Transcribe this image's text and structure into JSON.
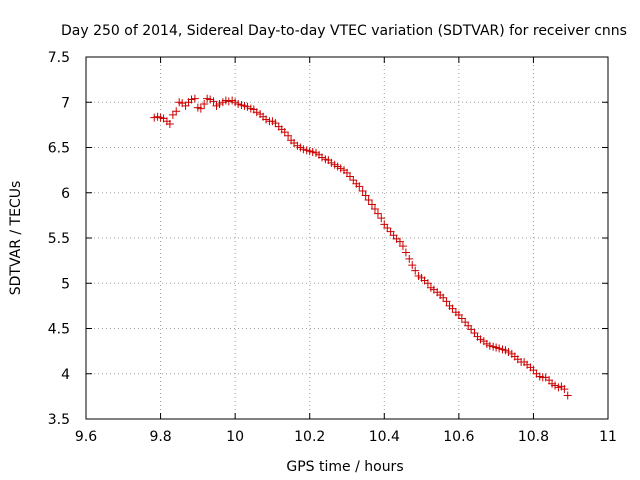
{
  "colors": {
    "series": "#cc0000",
    "grid": "#a0a0a0",
    "axis": "#000000",
    "background": "#ffffff"
  },
  "chart_data": {
    "type": "scatter",
    "title": "Day 250 of 2014, Sidereal Day-to-day VTEC variation (SDTVAR) for receiver cnns",
    "xlabel": "GPS time / hours",
    "ylabel": "SDTVAR / TECUs",
    "xlim": [
      9.6,
      11
    ],
    "ylim": [
      3.5,
      7.5
    ],
    "xticks": [
      9.6,
      9.8,
      10,
      10.2,
      10.4,
      10.6,
      10.8,
      11
    ],
    "xtick_labels": [
      "9.6",
      "9.8",
      "10",
      "10.2",
      "10.4",
      "10.6",
      "10.8",
      "11"
    ],
    "yticks": [
      3.5,
      4,
      4.5,
      5,
      5.5,
      6,
      6.5,
      7,
      7.5
    ],
    "ytick_labels": [
      "3.5",
      "4",
      "4.5",
      "5",
      "5.5",
      "6",
      "6.5",
      "7",
      "7.5"
    ],
    "grid": true,
    "marker": "+",
    "series": [
      {
        "name": "cnns",
        "x": [
          9.783,
          9.792,
          9.8,
          9.808,
          9.817,
          9.825,
          9.833,
          9.842,
          9.85,
          9.858,
          9.867,
          9.875,
          9.883,
          9.892,
          9.9,
          9.908,
          9.917,
          9.925,
          9.933,
          9.942,
          9.95,
          9.958,
          9.967,
          9.975,
          9.983,
          9.992,
          10.0,
          10.008,
          10.017,
          10.025,
          10.033,
          10.042,
          10.05,
          10.058,
          10.067,
          10.075,
          10.083,
          10.092,
          10.1,
          10.108,
          10.117,
          10.125,
          10.133,
          10.142,
          10.15,
          10.158,
          10.167,
          10.175,
          10.183,
          10.192,
          10.2,
          10.208,
          10.217,
          10.225,
          10.233,
          10.242,
          10.25,
          10.258,
          10.267,
          10.275,
          10.283,
          10.292,
          10.3,
          10.308,
          10.317,
          10.325,
          10.333,
          10.342,
          10.35,
          10.358,
          10.367,
          10.375,
          10.383,
          10.392,
          10.4,
          10.408,
          10.417,
          10.425,
          10.433,
          10.442,
          10.45,
          10.458,
          10.467,
          10.475,
          10.483,
          10.492,
          10.5,
          10.508,
          10.517,
          10.525,
          10.533,
          10.542,
          10.55,
          10.558,
          10.567,
          10.575,
          10.583,
          10.592,
          10.6,
          10.608,
          10.617,
          10.625,
          10.633,
          10.642,
          10.65,
          10.658,
          10.667,
          10.675,
          10.683,
          10.692,
          10.7,
          10.708,
          10.717,
          10.725,
          10.733,
          10.742,
          10.75,
          10.758,
          10.767,
          10.775,
          10.783,
          10.792,
          10.8,
          10.808,
          10.817,
          10.825,
          10.833,
          10.842,
          10.85,
          10.858,
          10.867,
          10.875,
          10.883,
          10.892
        ],
        "y": [
          6.83,
          6.84,
          6.83,
          6.82,
          6.79,
          6.76,
          6.86,
          6.9,
          7.0,
          6.99,
          6.96,
          7.0,
          7.03,
          7.04,
          6.94,
          6.93,
          6.98,
          7.04,
          7.03,
          7.01,
          6.96,
          6.98,
          7.0,
          7.02,
          7.01,
          7.02,
          7.0,
          6.98,
          6.97,
          6.96,
          6.95,
          6.93,
          6.92,
          6.89,
          6.87,
          6.84,
          6.81,
          6.79,
          6.79,
          6.77,
          6.73,
          6.7,
          6.67,
          6.63,
          6.58,
          6.55,
          6.52,
          6.5,
          6.48,
          6.47,
          6.46,
          6.45,
          6.44,
          6.42,
          6.39,
          6.37,
          6.36,
          6.33,
          6.31,
          6.29,
          6.27,
          6.25,
          6.22,
          6.18,
          6.14,
          6.1,
          6.07,
          6.02,
          5.97,
          5.92,
          5.87,
          5.82,
          5.77,
          5.72,
          5.65,
          5.61,
          5.57,
          5.53,
          5.49,
          5.46,
          5.41,
          5.34,
          5.27,
          5.2,
          5.14,
          5.08,
          5.06,
          5.03,
          5.0,
          4.95,
          4.93,
          4.9,
          4.87,
          4.84,
          4.8,
          4.75,
          4.72,
          4.68,
          4.65,
          4.61,
          4.57,
          4.53,
          4.49,
          4.45,
          4.41,
          4.38,
          4.36,
          4.33,
          4.31,
          4.3,
          4.29,
          4.28,
          4.27,
          4.26,
          4.24,
          4.22,
          4.19,
          4.16,
          4.13,
          4.13,
          4.1,
          4.07,
          4.04,
          4.0,
          3.97,
          3.96,
          3.96,
          3.93,
          3.89,
          3.87,
          3.85,
          3.86,
          3.83,
          3.76
        ]
      }
    ]
  }
}
